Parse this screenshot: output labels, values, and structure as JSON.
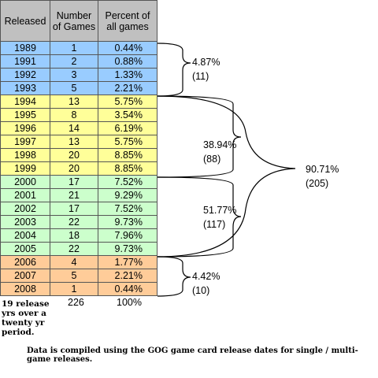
{
  "table": {
    "headers": [
      "Released",
      "Number\nof Games",
      "Percent of\nall games"
    ],
    "rows": [
      {
        "year": "1989",
        "count": "1",
        "pct": "0.44%",
        "color": "#99ccff"
      },
      {
        "year": "1991",
        "count": "2",
        "pct": "0.88%",
        "color": "#99ccff"
      },
      {
        "year": "1992",
        "count": "3",
        "pct": "1.33%",
        "color": "#99ccff"
      },
      {
        "year": "1993",
        "count": "5",
        "pct": "2.21%",
        "color": "#99ccff"
      },
      {
        "year": "1994",
        "count": "13",
        "pct": "5.75%",
        "color": "#ffff99"
      },
      {
        "year": "1995",
        "count": "8",
        "pct": "3.54%",
        "color": "#ffff99"
      },
      {
        "year": "1996",
        "count": "14",
        "pct": "6.19%",
        "color": "#ffff99"
      },
      {
        "year": "1997",
        "count": "13",
        "pct": "5.75%",
        "color": "#ffff99"
      },
      {
        "year": "1998",
        "count": "20",
        "pct": "8.85%",
        "color": "#ffff99"
      },
      {
        "year": "1999",
        "count": "20",
        "pct": "8.85%",
        "color": "#ffff99"
      },
      {
        "year": "2000",
        "count": "17",
        "pct": "7.52%",
        "color": "#ccffcc"
      },
      {
        "year": "2001",
        "count": "21",
        "pct": "9.29%",
        "color": "#ccffcc"
      },
      {
        "year": "2002",
        "count": "17",
        "pct": "7.52%",
        "color": "#ccffcc"
      },
      {
        "year": "2003",
        "count": "22",
        "pct": "9.73%",
        "color": "#ccffcc"
      },
      {
        "year": "2004",
        "count": "18",
        "pct": "7.96%",
        "color": "#ccffcc"
      },
      {
        "year": "2005",
        "count": "22",
        "pct": "9.73%",
        "color": "#ccffcc"
      },
      {
        "year": "2006",
        "count": "4",
        "pct": "1.77%",
        "color": "#ffcc99"
      },
      {
        "year": "2007",
        "count": "5",
        "pct": "2.21%",
        "color": "#ffcc99"
      },
      {
        "year": "2008",
        "count": "1",
        "pct": "0.44%",
        "color": "#ffcc99"
      }
    ]
  },
  "groups": [
    {
      "pct": "4.87%",
      "count": "(11)"
    },
    {
      "pct": "38.94%",
      "count": "(88)"
    },
    {
      "pct": "51.77%",
      "count": "(117)"
    },
    {
      "pct": "4.42%",
      "count": "(10)"
    }
  ],
  "combined": {
    "pct": "90.71%",
    "count": "(205)"
  },
  "summary": {
    "years_note": "19 release yrs over a twenty yr period.",
    "total_count": "226",
    "total_pct": "100%"
  },
  "footnote": "Data is compiled using the GOG game card release dates for single / multi-game releases."
}
